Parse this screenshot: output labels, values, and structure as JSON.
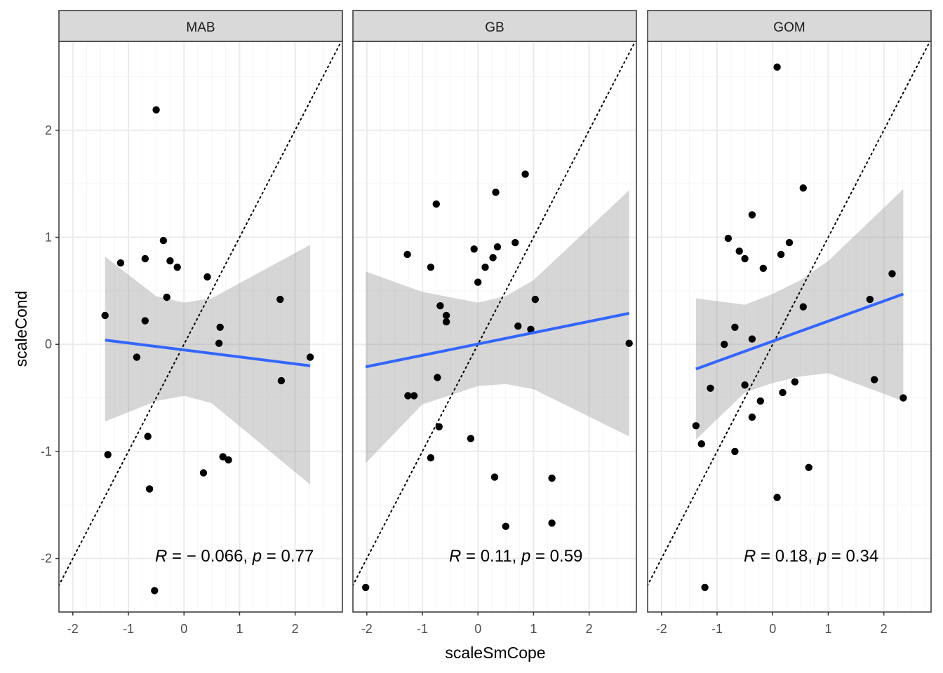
{
  "chart_data": {
    "type": "scatter",
    "xlabel": "scaleSmCope",
    "ylabel": "scaleCond",
    "xlim": [
      -2.25,
      2.85
    ],
    "ylim": [
      -2.5,
      2.83
    ],
    "x_ticks": [
      -2,
      -1,
      0,
      1,
      2
    ],
    "y_ticks": [
      -2,
      -1,
      0,
      1,
      2
    ],
    "x_tick_labels": [
      "-2",
      "-1",
      "0",
      "1",
      "2"
    ],
    "y_tick_labels": [
      "-2",
      "-1",
      "0",
      "1",
      "2"
    ],
    "grid": true,
    "reference_line": "y = x (dotted)",
    "colors": {
      "points": "#000000",
      "fit_line": "#3366FF",
      "ribbon": "#999999",
      "strip": "#D9D9D9",
      "grid_major": "#EBEBEB",
      "grid_minor": "#F5F5F5"
    },
    "panels": [
      {
        "name": "MAB",
        "annotation": {
          "r_label": "R",
          "r_rest": " = − 0.066, ",
          "p_label": "p",
          "p_rest": " = 0.77"
        },
        "fit": {
          "x": [
            -1.42,
            2.27
          ],
          "y": [
            0.04,
            -0.2
          ]
        },
        "ribbon": {
          "x": [
            -1.42,
            -0.5,
            0,
            0.5,
            2.27
          ],
          "upper": [
            0.82,
            0.45,
            0.39,
            0.43,
            0.93
          ],
          "lower": [
            -0.72,
            -0.53,
            -0.48,
            -0.55,
            -1.31
          ]
        },
        "points": {
          "x": [
            -0.5,
            -0.37,
            -1.14,
            -0.7,
            -0.25,
            -0.12,
            0.42,
            -0.31,
            -1.42,
            -0.7,
            0.65,
            0.63,
            1.73,
            2.27,
            -0.85,
            1.75,
            -0.65,
            -1.37,
            0.7,
            0.8,
            0.35,
            -0.62,
            -0.53
          ],
          "y": [
            2.19,
            0.97,
            0.76,
            0.8,
            0.78,
            0.72,
            0.63,
            0.44,
            0.27,
            0.22,
            0.16,
            0.01,
            0.42,
            -0.12,
            -0.12,
            -0.34,
            -0.86,
            -1.03,
            -1.05,
            -1.08,
            -1.2,
            -1.35,
            -2.3
          ]
        }
      },
      {
        "name": "GB",
        "annotation": {
          "r_label": "R",
          "r_rest": " = 0.11, ",
          "p_label": "p",
          "p_rest": " = 0.59"
        },
        "fit": {
          "x": [
            -2.02,
            2.72
          ],
          "y": [
            -0.21,
            0.29
          ]
        },
        "ribbon": {
          "x": [
            -2.02,
            -1.0,
            0,
            0.5,
            1.0,
            2.72
          ],
          "upper": [
            0.68,
            0.49,
            0.39,
            0.45,
            0.6,
            1.44
          ],
          "lower": [
            -1.11,
            -0.56,
            -0.39,
            -0.37,
            -0.42,
            -0.86
          ]
        },
        "points": {
          "x": [
            0.85,
            -0.75,
            0.32,
            -1.27,
            -0.07,
            0.35,
            0.67,
            0.27,
            0.13,
            -0.85,
            0.0,
            -0.68,
            -0.57,
            -0.57,
            1.03,
            0.72,
            0.95,
            2.72,
            -0.73,
            -1.26,
            -1.15,
            -0.7,
            -0.13,
            -0.85,
            0.3,
            1.33,
            1.33,
            0.5,
            -2.02
          ],
          "y": [
            1.59,
            1.31,
            1.42,
            0.84,
            0.89,
            0.91,
            0.95,
            0.81,
            0.72,
            0.72,
            0.58,
            0.36,
            0.27,
            0.21,
            0.42,
            0.17,
            0.14,
            0.01,
            -0.31,
            -0.48,
            -0.48,
            -0.77,
            -0.88,
            -1.06,
            -1.24,
            -1.25,
            -1.67,
            -1.7,
            -2.27
          ]
        }
      },
      {
        "name": "GOM",
        "annotation": {
          "r_label": "R",
          "r_rest": " = 0.18, ",
          "p_label": "p",
          "p_rest": " = 0.34"
        },
        "fit": {
          "x": [
            -1.38,
            2.35
          ],
          "y": [
            -0.23,
            0.47
          ]
        },
        "ribbon": {
          "x": [
            -1.38,
            -0.5,
            0,
            0.5,
            1.0,
            2.35
          ],
          "upper": [
            0.43,
            0.37,
            0.47,
            0.6,
            0.78,
            1.45
          ],
          "lower": [
            -0.89,
            -0.45,
            -0.36,
            -0.3,
            -0.27,
            -0.53
          ]
        },
        "points": {
          "x": [
            0.08,
            0.55,
            -0.37,
            -0.8,
            -0.6,
            0.3,
            0.15,
            -0.5,
            -0.17,
            1.75,
            2.15,
            0.55,
            -0.68,
            -0.87,
            -0.37,
            1.83,
            -0.5,
            0.4,
            0.18,
            -0.22,
            2.35,
            -0.37,
            -1.12,
            -1.38,
            -1.28,
            -0.68,
            0.65,
            0.08,
            -1.22
          ],
          "y": [
            2.59,
            1.46,
            1.21,
            0.99,
            0.87,
            0.95,
            0.84,
            0.8,
            0.71,
            0.42,
            0.66,
            0.35,
            0.16,
            0.0,
            0.05,
            -0.33,
            -0.38,
            -0.35,
            -0.45,
            -0.53,
            -0.5,
            -0.68,
            -0.41,
            -0.76,
            -0.93,
            -1.0,
            -1.15,
            -1.43,
            -2.27
          ]
        }
      }
    ]
  }
}
